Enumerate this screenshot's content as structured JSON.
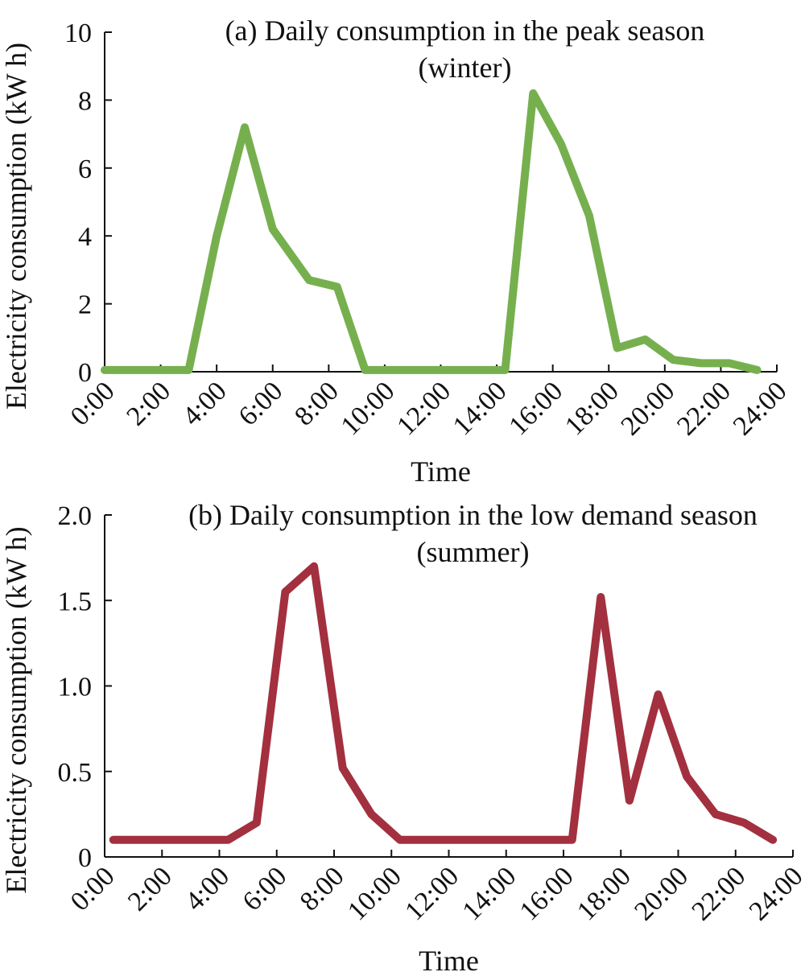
{
  "chart_data": [
    {
      "type": "line",
      "title": "(a) Daily consumption in the peak season",
      "subtitle": "(winter)",
      "xlabel": "Time",
      "ylabel": "Electricity consumption (kW h)",
      "xticks": [
        "0:00",
        "2:00",
        "4:00",
        "6:00",
        "8:00",
        "10:00",
        "12:00",
        "14:00",
        "16:00",
        "18:00",
        "20:00",
        "22:00",
        "24:00"
      ],
      "yticks": [
        "0",
        "2",
        "4",
        "6",
        "8",
        "10"
      ],
      "ylim": [
        0,
        10
      ],
      "xlim": [
        0,
        24
      ],
      "grid": false,
      "series": [
        {
          "color": "#76b04e",
          "x": [
            0.0,
            1,
            2,
            3,
            4,
            5.0,
            6.0,
            7.3,
            8.3,
            9.3,
            10,
            11,
            12,
            13,
            14.3,
            15.3,
            16.3,
            17.3,
            18.3,
            19.3,
            20.3,
            21.3,
            22.3,
            23.3
          ],
          "y": [
            0.05,
            0.05,
            0.05,
            0.05,
            4.0,
            7.2,
            4.2,
            2.7,
            2.5,
            0.05,
            0.05,
            0.05,
            0.05,
            0.05,
            0.05,
            8.2,
            6.7,
            4.6,
            0.7,
            0.95,
            0.35,
            0.25,
            0.25,
            0.05
          ]
        }
      ]
    },
    {
      "type": "line",
      "title": "(b) Daily consumption in the low demand season",
      "subtitle": "(summer)",
      "xlabel": "Time",
      "ylabel": "Electricity consumption (kW h)",
      "xticks": [
        "0:00",
        "2:00",
        "4:00",
        "6:00",
        "8:00",
        "10:00",
        "12:00",
        "14:00",
        "16:00",
        "18:00",
        "20:00",
        "22:00",
        "24:00"
      ],
      "yticks": [
        "0",
        "0.5",
        "1.0",
        "1.5",
        "2.0"
      ],
      "ylim": [
        0,
        2.0
      ],
      "xlim": [
        0,
        24
      ],
      "grid": false,
      "series": [
        {
          "color": "#a3303f",
          "x": [
            0.3,
            1.3,
            2.3,
            3.3,
            4.3,
            5.3,
            6.3,
            7.3,
            8.3,
            9.3,
            10.3,
            11.3,
            12.3,
            13.3,
            14.3,
            15.3,
            16.3,
            17.3,
            18.3,
            19.3,
            20.3,
            21.3,
            22.3,
            23.3
          ],
          "y": [
            0.1,
            0.1,
            0.1,
            0.1,
            0.1,
            0.2,
            1.55,
            1.7,
            0.52,
            0.25,
            0.1,
            0.1,
            0.1,
            0.1,
            0.1,
            0.1,
            0.1,
            1.52,
            0.33,
            0.95,
            0.47,
            0.25,
            0.2,
            0.1
          ]
        }
      ]
    }
  ]
}
